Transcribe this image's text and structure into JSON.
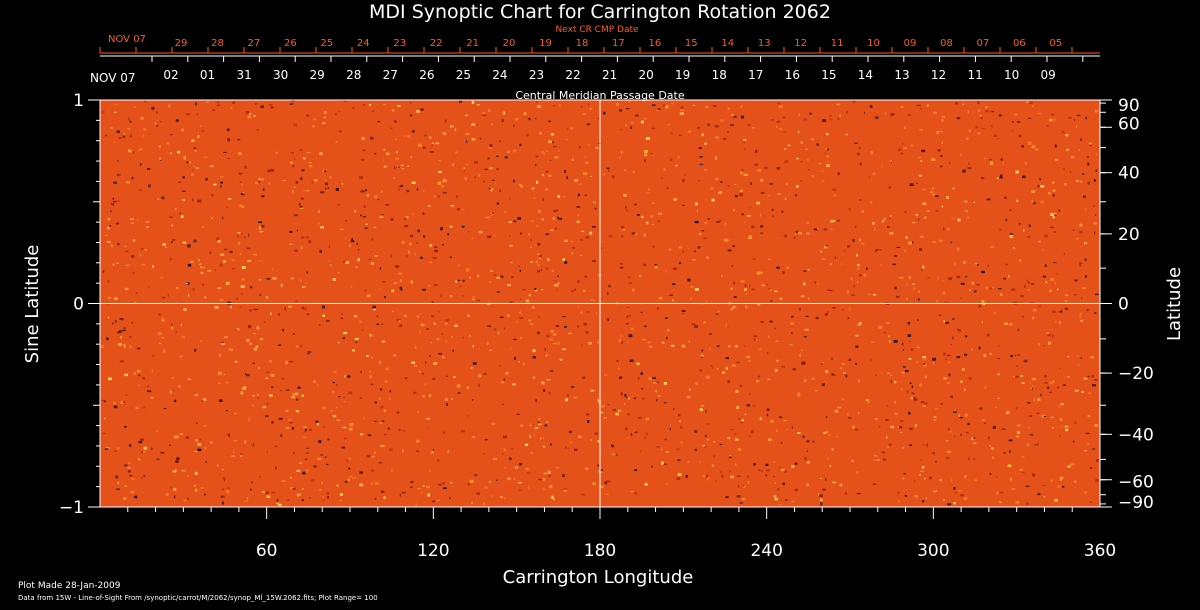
{
  "chart_data": {
    "type": "heatmap",
    "title": "MDI Synoptic Chart for Carrington Rotation 2062",
    "xlabel": "Carrington Longitude",
    "ylabel_left": "Sine Latitude",
    "ylabel_right": "Latitude",
    "xlim": [
      0,
      360
    ],
    "ylim": [
      -1,
      1
    ],
    "x_ticks": [
      60,
      120,
      180,
      240,
      300,
      360
    ],
    "y_left_ticks": [
      {
        "v": 1,
        "label": "1"
      },
      {
        "v": 0,
        "label": "0"
      },
      {
        "v": -1,
        "label": "−1"
      }
    ],
    "y_right_ticks": [
      90,
      60,
      40,
      20,
      0,
      -20,
      -40,
      -60,
      -90
    ],
    "y_right_labels": [
      "90",
      "60",
      "40",
      "20",
      "0",
      "−20",
      "−40",
      "−60",
      "−90"
    ],
    "crosshair": {
      "x": 180,
      "y": 0
    },
    "top_axis_white": {
      "label": "Central Meridian Passage Date",
      "start_label": "NOV 07",
      "dates": [
        "02",
        "01",
        "31",
        "30",
        "29",
        "28",
        "27",
        "26",
        "25",
        "24",
        "23",
        "22",
        "21",
        "20",
        "19",
        "18",
        "17",
        "16",
        "15",
        "14",
        "13",
        "12",
        "11",
        "10",
        "09"
      ]
    },
    "top_axis_red": {
      "label": "Next CR CMP Date",
      "start_label": "NOV 07",
      "dates": [
        "29",
        "28",
        "27",
        "26",
        "25",
        "24",
        "23",
        "22",
        "21",
        "20",
        "19",
        "18",
        "17",
        "16",
        "15",
        "14",
        "13",
        "12",
        "11",
        "10",
        "09",
        "08",
        "07",
        "06",
        "05"
      ]
    },
    "colormap": {
      "background": "#e4521a",
      "bright": "#ffe066",
      "dark": "#1a1040"
    },
    "footer": {
      "plot_made": "Plot Made 28-Jan-2009",
      "source": "Data from 15W - Line-of-Sight From /synoptic/carrot/M/2062/synop_Ml_15W.2062.fits; Plot Range=  100"
    }
  }
}
